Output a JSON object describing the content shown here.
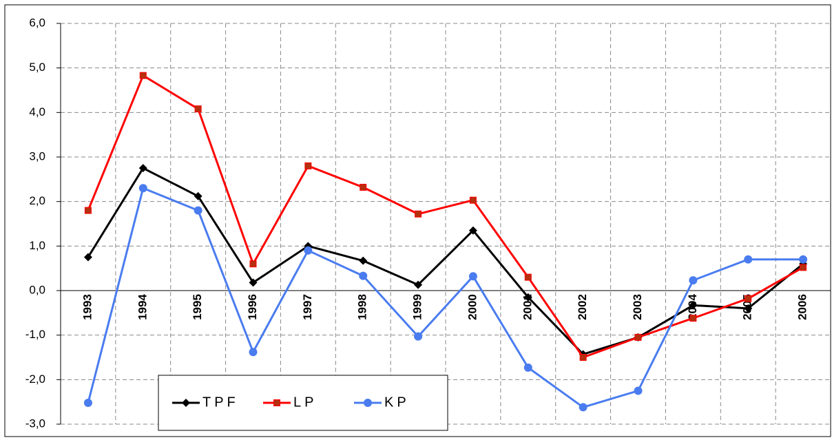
{
  "chart_data": {
    "type": "line",
    "categories": [
      "1993",
      "1994",
      "1995",
      "1996",
      "1997",
      "1998",
      "1999",
      "2000",
      "2001",
      "2002",
      "2003",
      "2004",
      "2005",
      "2006"
    ],
    "series": [
      {
        "name": "TPF",
        "color": "#000000",
        "marker": "diamond",
        "values": [
          0.75,
          2.75,
          2.12,
          0.18,
          1.0,
          0.67,
          0.13,
          1.35,
          -0.15,
          -1.43,
          -1.05,
          -0.33,
          -0.4,
          0.6
        ]
      },
      {
        "name": "LP",
        "color": "#ff0000",
        "marker": "square",
        "values": [
          1.8,
          4.83,
          4.08,
          0.6,
          2.8,
          2.32,
          1.72,
          2.03,
          0.3,
          -1.5,
          -1.05,
          -0.62,
          -0.18,
          0.52
        ]
      },
      {
        "name": "KP",
        "color": "#4a7cf0",
        "marker": "circle",
        "values": [
          -2.52,
          2.3,
          1.8,
          -1.38,
          0.9,
          0.33,
          -1.03,
          0.32,
          -1.73,
          -2.62,
          -2.25,
          0.23,
          0.7,
          0.7
        ]
      }
    ],
    "ylim": [
      -3,
      6
    ],
    "yticks": [
      {
        "value": -3,
        "label": "-3,0"
      },
      {
        "value": -2,
        "label": "-2,0"
      },
      {
        "value": -1,
        "label": "-1,0"
      },
      {
        "value": 0,
        "label": "0,0"
      },
      {
        "value": 1,
        "label": "1,0"
      },
      {
        "value": 2,
        "label": "2,0"
      },
      {
        "value": 3,
        "label": "3,0"
      },
      {
        "value": 4,
        "label": "4,0"
      },
      {
        "value": 5,
        "label": "5,0"
      },
      {
        "value": 6,
        "label": "6,0"
      }
    ],
    "grid": true,
    "legend": "bottom-left"
  }
}
